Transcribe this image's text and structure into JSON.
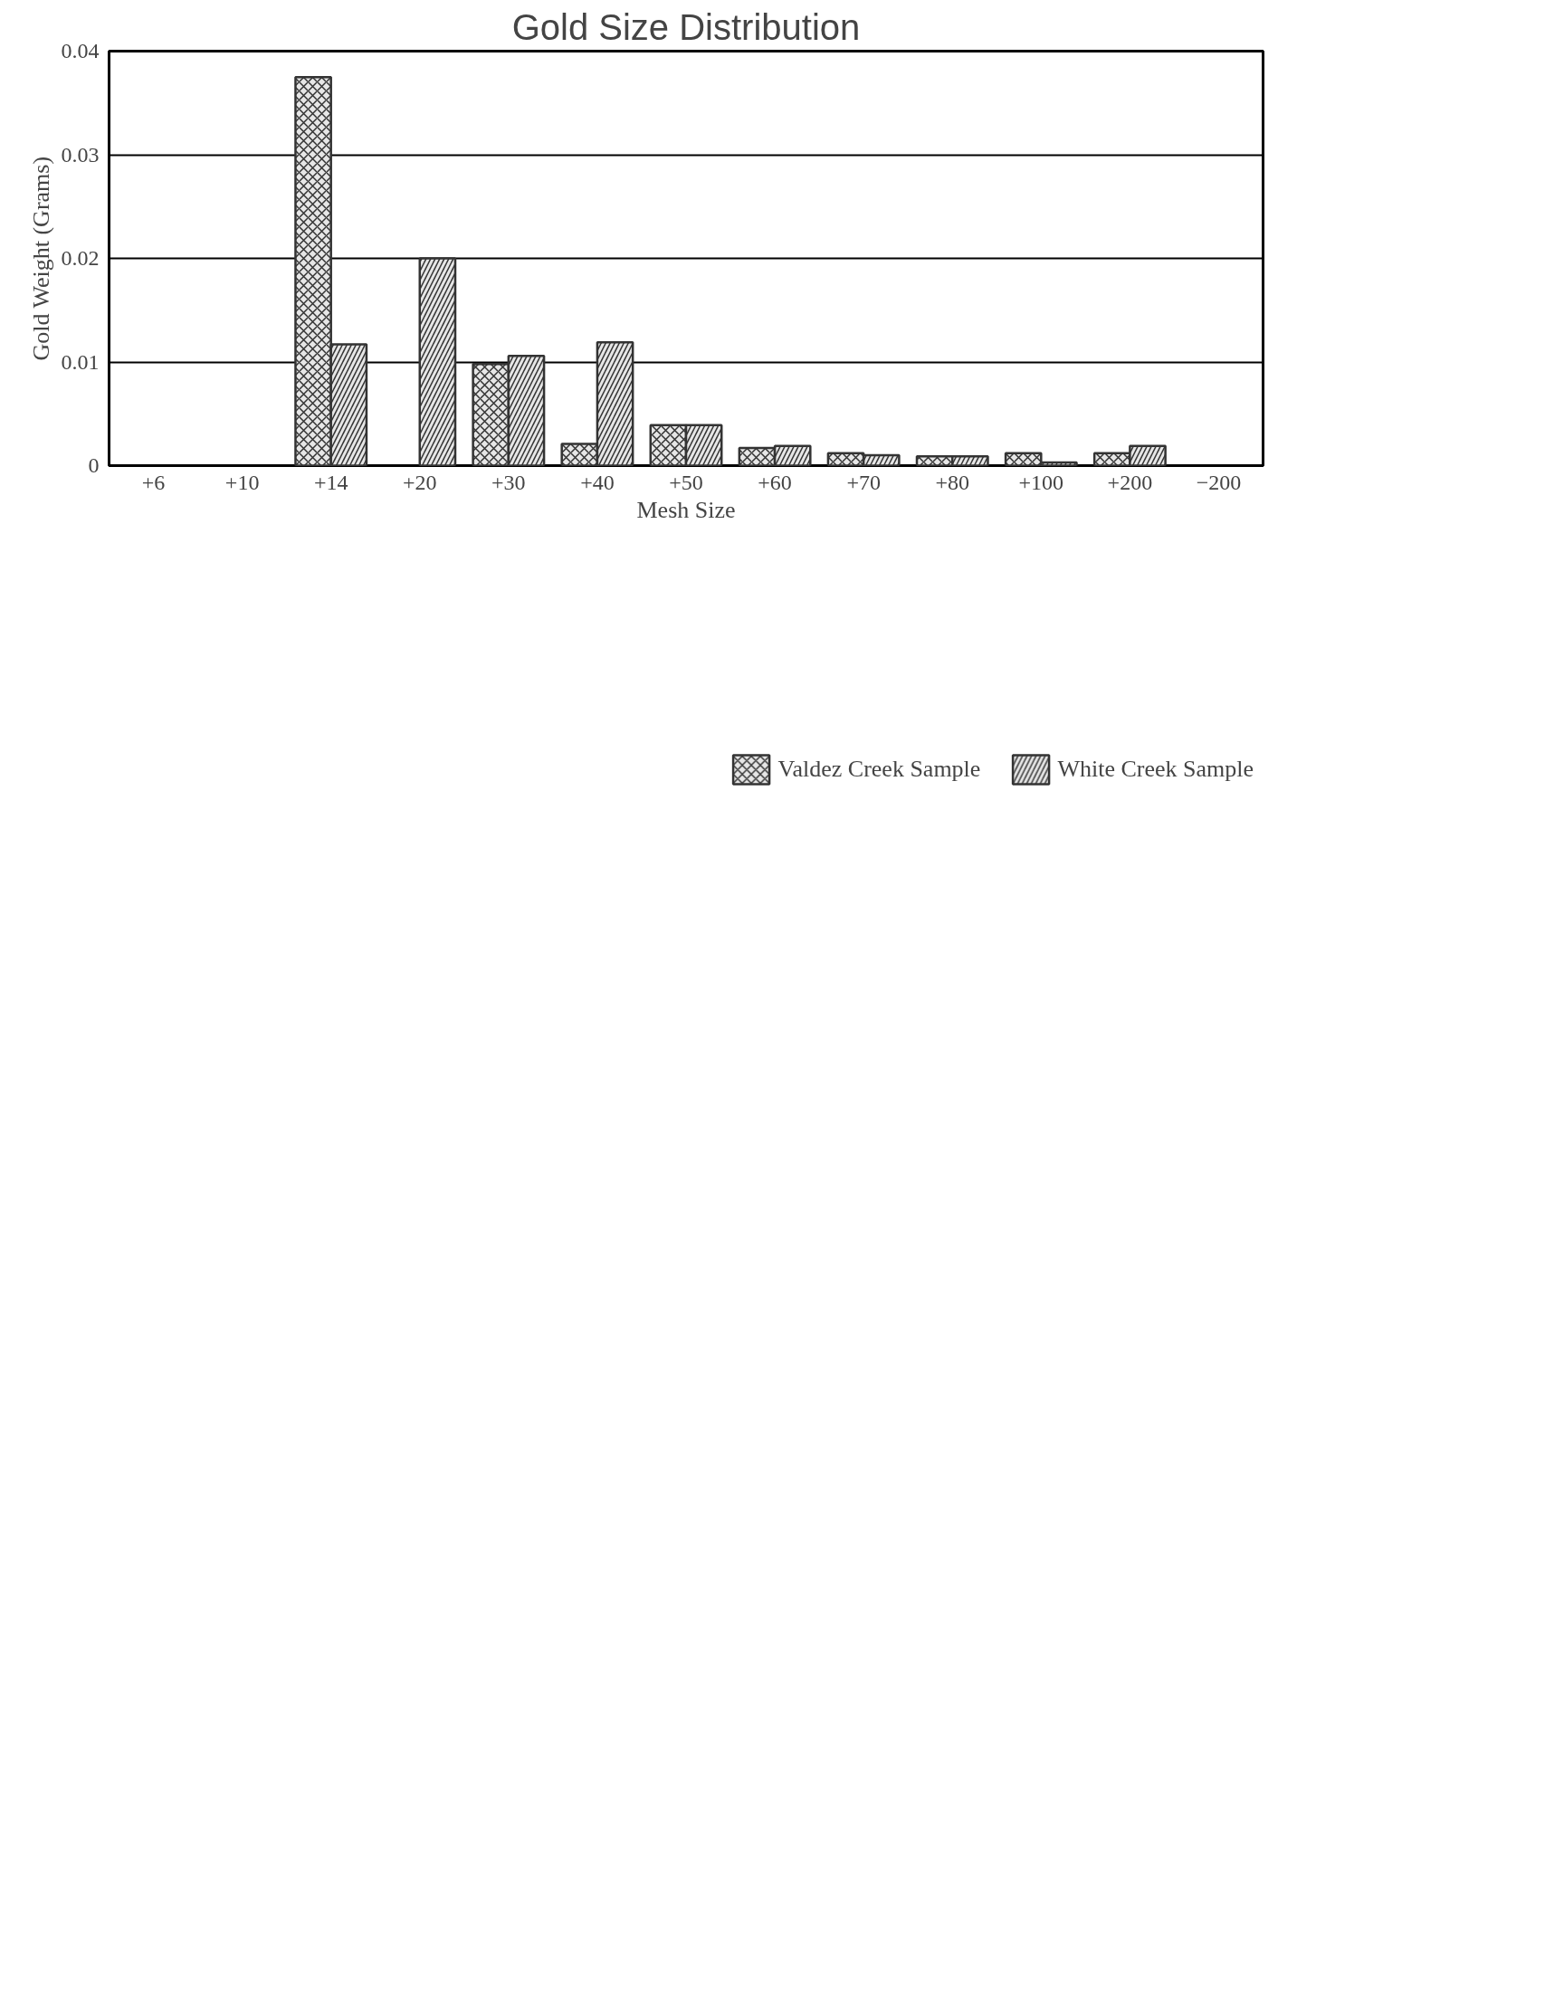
{
  "chart_data": {
    "type": "bar",
    "title": "Gold Size Distribution",
    "xlabel": "Mesh Size",
    "ylabel": "Gold Weight (Grams)",
    "categories": [
      "+6",
      "+10",
      "+14",
      "+20",
      "+30",
      "+40",
      "+50",
      "+60",
      "+70",
      "+80",
      "+100",
      "+200",
      "−200"
    ],
    "series": [
      {
        "name": "Valdez Creek Sample",
        "color": "#e6e6e6",
        "values": [
          null,
          null,
          0.0375,
          null,
          0.0098,
          0.0021,
          0.0039,
          0.0017,
          0.0012,
          0.0009,
          0.0012,
          0.0012,
          null
        ]
      },
      {
        "name": "White Creek Sample",
        "color": "#e6e6e6",
        "values": [
          null,
          null,
          0.0117,
          0.02,
          0.0106,
          0.0119,
          0.0039,
          0.0019,
          0.001,
          0.0009,
          0.0003,
          0.0019,
          null
        ]
      }
    ],
    "ylim": [
      0,
      0.04
    ],
    "yticks": [
      0,
      0.01,
      0.02,
      0.03,
      0.04
    ],
    "grid": "y",
    "legend": "bottom"
  }
}
